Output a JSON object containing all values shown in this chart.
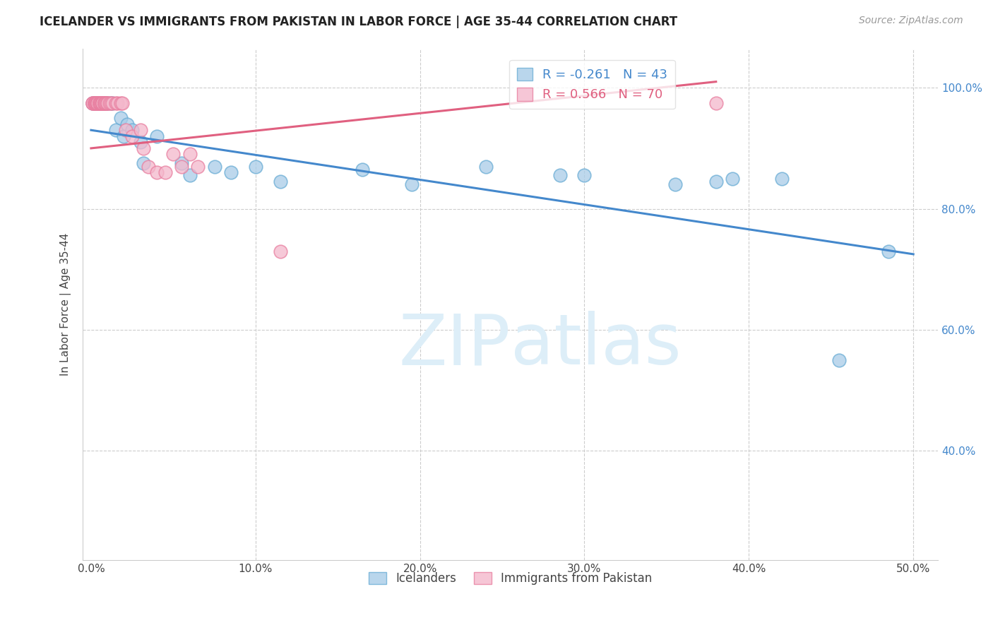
{
  "title": "ICELANDER VS IMMIGRANTS FROM PAKISTAN IN LABOR FORCE | AGE 35-44 CORRELATION CHART",
  "source": "Source: ZipAtlas.com",
  "xlabel_ticks": [
    "0.0%",
    "10.0%",
    "20.0%",
    "30.0%",
    "40.0%",
    "50.0%"
  ],
  "xlabel_vals": [
    0.0,
    0.1,
    0.2,
    0.3,
    0.4,
    0.5
  ],
  "ylabel_ticks": [
    "100.0%",
    "80.0%",
    "60.0%",
    "40.0%"
  ],
  "ylabel_vals": [
    1.0,
    0.8,
    0.6,
    0.4
  ],
  "xlim": [
    -0.005,
    0.515
  ],
  "ylim": [
    0.22,
    1.065
  ],
  "ylabel": "In Labor Force | Age 35-44",
  "legend_blue_label": "Icelanders",
  "legend_pink_label": "Immigrants from Pakistan",
  "R_blue": -0.261,
  "N_blue": 43,
  "R_pink": 0.566,
  "N_pink": 70,
  "blue_color": "#a8cce8",
  "blue_edge_color": "#6aadd5",
  "pink_color": "#f4b8cc",
  "pink_edge_color": "#e87fa0",
  "blue_line_color": "#4488cc",
  "pink_line_color": "#e06080",
  "watermark_color": "#ddeef8",
  "icelanders_x": [
    0.001,
    0.002,
    0.003,
    0.003,
    0.004,
    0.004,
    0.004,
    0.005,
    0.005,
    0.005,
    0.006,
    0.007,
    0.007,
    0.008,
    0.009,
    0.01,
    0.012,
    0.013,
    0.015,
    0.018,
    0.02,
    0.022,
    0.025,
    0.03,
    0.032,
    0.04,
    0.055,
    0.06,
    0.075,
    0.085,
    0.1,
    0.115,
    0.165,
    0.195,
    0.24,
    0.285,
    0.3,
    0.355,
    0.38,
    0.39,
    0.42,
    0.455,
    0.485
  ],
  "icelanders_y": [
    0.975,
    0.975,
    0.975,
    0.975,
    0.975,
    0.975,
    0.975,
    0.975,
    0.975,
    0.975,
    0.975,
    0.975,
    0.975,
    0.975,
    0.975,
    0.975,
    0.975,
    0.975,
    0.93,
    0.95,
    0.92,
    0.94,
    0.93,
    0.91,
    0.875,
    0.92,
    0.875,
    0.855,
    0.87,
    0.86,
    0.87,
    0.845,
    0.865,
    0.84,
    0.87,
    0.855,
    0.855,
    0.84,
    0.845,
    0.85,
    0.85,
    0.55,
    0.73
  ],
  "pakistan_x": [
    0.001,
    0.001,
    0.001,
    0.002,
    0.002,
    0.002,
    0.002,
    0.002,
    0.003,
    0.003,
    0.003,
    0.003,
    0.003,
    0.003,
    0.003,
    0.003,
    0.004,
    0.004,
    0.004,
    0.004,
    0.004,
    0.004,
    0.004,
    0.004,
    0.005,
    0.005,
    0.005,
    0.005,
    0.005,
    0.005,
    0.006,
    0.006,
    0.006,
    0.006,
    0.006,
    0.006,
    0.007,
    0.007,
    0.007,
    0.007,
    0.007,
    0.008,
    0.008,
    0.008,
    0.008,
    0.008,
    0.009,
    0.009,
    0.01,
    0.01,
    0.011,
    0.012,
    0.013,
    0.015,
    0.016,
    0.018,
    0.019,
    0.021,
    0.025,
    0.03,
    0.032,
    0.035,
    0.04,
    0.045,
    0.05,
    0.055,
    0.06,
    0.065,
    0.115,
    0.38
  ],
  "pakistan_y": [
    0.975,
    0.975,
    0.975,
    0.975,
    0.975,
    0.975,
    0.975,
    0.975,
    0.975,
    0.975,
    0.975,
    0.975,
    0.975,
    0.975,
    0.975,
    0.975,
    0.975,
    0.975,
    0.975,
    0.975,
    0.975,
    0.975,
    0.975,
    0.975,
    0.975,
    0.975,
    0.975,
    0.975,
    0.975,
    0.975,
    0.975,
    0.975,
    0.975,
    0.975,
    0.975,
    0.975,
    0.975,
    0.975,
    0.975,
    0.975,
    0.975,
    0.975,
    0.975,
    0.975,
    0.975,
    0.975,
    0.975,
    0.975,
    0.975,
    0.975,
    0.975,
    0.975,
    0.975,
    0.975,
    0.975,
    0.975,
    0.975,
    0.93,
    0.92,
    0.93,
    0.9,
    0.87,
    0.86,
    0.86,
    0.89,
    0.87,
    0.89,
    0.87,
    0.73,
    0.975
  ],
  "blue_trendline_x": [
    0.0,
    0.5
  ],
  "blue_trendline_y": [
    0.93,
    0.725
  ],
  "pink_trendline_x": [
    0.0,
    0.38
  ],
  "pink_trendline_y": [
    0.9,
    1.01
  ]
}
